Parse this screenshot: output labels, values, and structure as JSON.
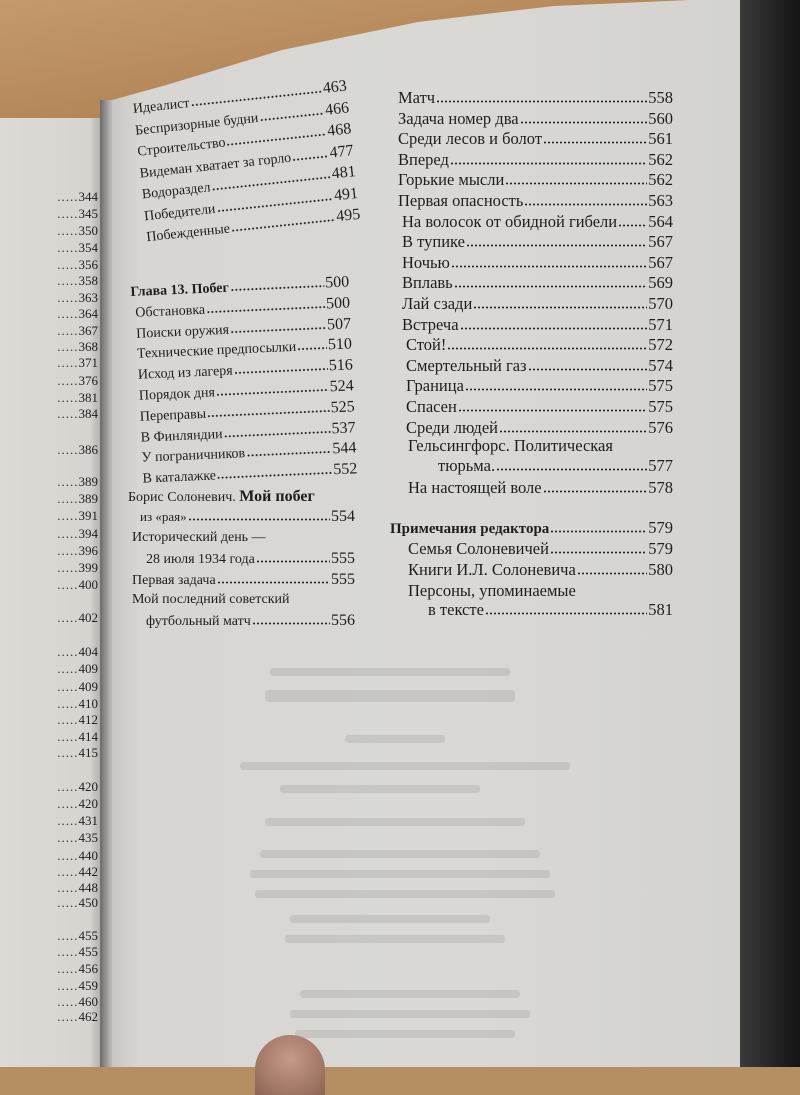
{
  "left_page": {
    "page_numbers": [
      "344",
      "345",
      "350",
      "354",
      "356",
      "358",
      "363",
      "364",
      "367",
      "368",
      "371",
      "376",
      "381",
      "384",
      "386",
      "389",
      "389",
      "391",
      "394",
      "396",
      "399",
      "400",
      "402",
      "404",
      "409",
      "409",
      "410",
      "412",
      "414",
      "415",
      "420",
      "420",
      "431",
      "435",
      "440",
      "442",
      "448",
      "450",
      "455",
      "455",
      "456",
      "459",
      "460",
      "462"
    ]
  },
  "middle_column": {
    "upper": [
      {
        "title": "Идеалист",
        "page": "463"
      },
      {
        "title": "Беспризорные будни",
        "page": "466"
      },
      {
        "title": "Строительство",
        "page": "468"
      },
      {
        "title": "Видеман хватает за горло",
        "page": "477"
      },
      {
        "title": "Водораздел",
        "page": "481"
      },
      {
        "title": "Победители",
        "page": "491"
      },
      {
        "title": "Побежденные",
        "page": "495"
      }
    ],
    "chapter13": [
      {
        "title": "Глава 13. Побег",
        "page": "500"
      },
      {
        "title": "Обстановка",
        "page": "500"
      },
      {
        "title": "Поиски оружия",
        "page": "507"
      },
      {
        "title": "Технические предпосылки",
        "page": "510"
      },
      {
        "title": "Исход из лагеря",
        "page": "516"
      },
      {
        "title": "Порядок дня",
        "page": "524"
      },
      {
        "title": "Переправы",
        "page": "525"
      },
      {
        "title": "В Финляндии",
        "page": "537"
      },
      {
        "title": "У пограничников",
        "page": "544"
      },
      {
        "title": "В каталажке",
        "page": "552"
      }
    ],
    "boris": {
      "author": "Борис Солоневич.",
      "title": "Мой побег",
      "title_cont": "из «рая»",
      "page": "554",
      "items": [
        {
          "line1": "Исторический день —",
          "line2": "28 июля 1934 года",
          "page": "555"
        },
        {
          "line1": "",
          "line2": "Первая задача",
          "page": "555"
        },
        {
          "line1": "Мой последний советский",
          "line2": "футбольный матч",
          "page": "556"
        }
      ]
    }
  },
  "right_column": {
    "items": [
      {
        "title": "Матч",
        "page": "558"
      },
      {
        "title": "Задача номер два",
        "page": "560"
      },
      {
        "title": "Среди лесов и болот",
        "page": "561"
      },
      {
        "title": "Вперед",
        "page": "562"
      },
      {
        "title": "Горькие мысли",
        "page": "562"
      },
      {
        "title": "Первая опасность",
        "page": "563"
      },
      {
        "title": "На волосок от обидной гибели",
        "page": "564"
      },
      {
        "title": "В тупике",
        "page": "567"
      },
      {
        "title": "Ночью",
        "page": "567"
      },
      {
        "title": "Вплавь",
        "page": "569"
      },
      {
        "title": "Лай сзади",
        "page": "570"
      },
      {
        "title": "Встреча",
        "page": "571"
      },
      {
        "title": "Стой!",
        "page": "572"
      },
      {
        "title": "Смертельный газ",
        "page": "574"
      },
      {
        "title": "Граница",
        "page": "575"
      },
      {
        "title": "Спасен",
        "page": "575"
      },
      {
        "title": "Среди людей",
        "page": "576"
      }
    ],
    "helsingfors": {
      "line1": "Гельсингфорс. Политическая",
      "line2": "тюрьма.",
      "page": "577"
    },
    "last": {
      "title": "На настоящей воле",
      "page": "578"
    },
    "notes": {
      "title": "Примечания редактора",
      "page": "579",
      "items": [
        {
          "title": "Семья Солоневичей",
          "page": "579"
        },
        {
          "title": "Книги И.Л. Солоневича",
          "page": "580"
        }
      ],
      "persons": {
        "line1": "Персоны, упоминаемые",
        "line2": "в тексте",
        "page": "581"
      }
    }
  },
  "colors": {
    "paper": "#d9d8d5",
    "ink": "#1e1e1e",
    "wood": "#b38658"
  }
}
